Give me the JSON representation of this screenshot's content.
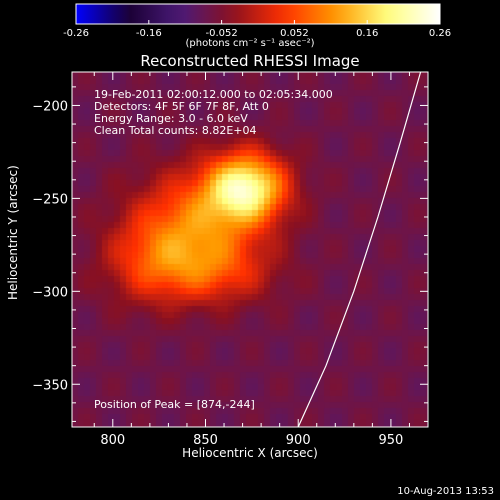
{
  "chart_data": {
    "type": "heatmap",
    "title": "Reconstructed RHESSI Image",
    "xlabel": "Heliocentric X (arcsec)",
    "ylabel": "Heliocentric Y (arcsec)",
    "xlim": [
      778,
      970
    ],
    "ylim": [
      -373,
      -182
    ],
    "x_ticks": [
      800,
      850,
      900,
      950
    ],
    "y_ticks": [
      -200,
      -250,
      -300,
      -350
    ],
    "colorbar": {
      "ticks": [
        "-0.26",
        "-0.16",
        "-0.052",
        "0.052",
        "0.16",
        "0.26"
      ],
      "range": [
        -0.26,
        0.26
      ],
      "units_label": "(photons cm⁻² s⁻¹ asec⁻²)"
    },
    "annotations": [
      "19-Feb-2011 02:00:12.000 to 02:05:34.000",
      "Detectors: 4F 5F 6F 7F 8F, Att 0",
      "Energy Range: 3.0 - 6.0 keV",
      "Clean     Total counts: 8.82E+04"
    ],
    "peak_label": "Position of Peak = [874,-244]",
    "peak": [
      874,
      -244
    ],
    "limb_curve": [
      [
        900,
        -373
      ],
      [
        915,
        -340
      ],
      [
        930,
        -300
      ],
      [
        943,
        -260
      ],
      [
        955,
        -220
      ],
      [
        966,
        -182
      ]
    ],
    "blobs": [
      {
        "x": 872,
        "y": -244,
        "amp": 0.26,
        "sx": 15,
        "sy": 13
      },
      {
        "x": 845,
        "y": -265,
        "amp": 0.15,
        "sx": 24,
        "sy": 20
      },
      {
        "x": 820,
        "y": -285,
        "amp": 0.08,
        "sx": 18,
        "sy": 16
      },
      {
        "x": 855,
        "y": -290,
        "amp": 0.08,
        "sx": 22,
        "sy": 12
      }
    ],
    "background_level": -0.07,
    "colormap": [
      "#0000ff",
      "#1a0033",
      "#4a1a7a",
      "#8a1020",
      "#ff3000",
      "#ff9a00",
      "#ffff80",
      "#ffffff"
    ]
  },
  "footer": {
    "timestamp": "10-Aug-2013 13:53"
  }
}
